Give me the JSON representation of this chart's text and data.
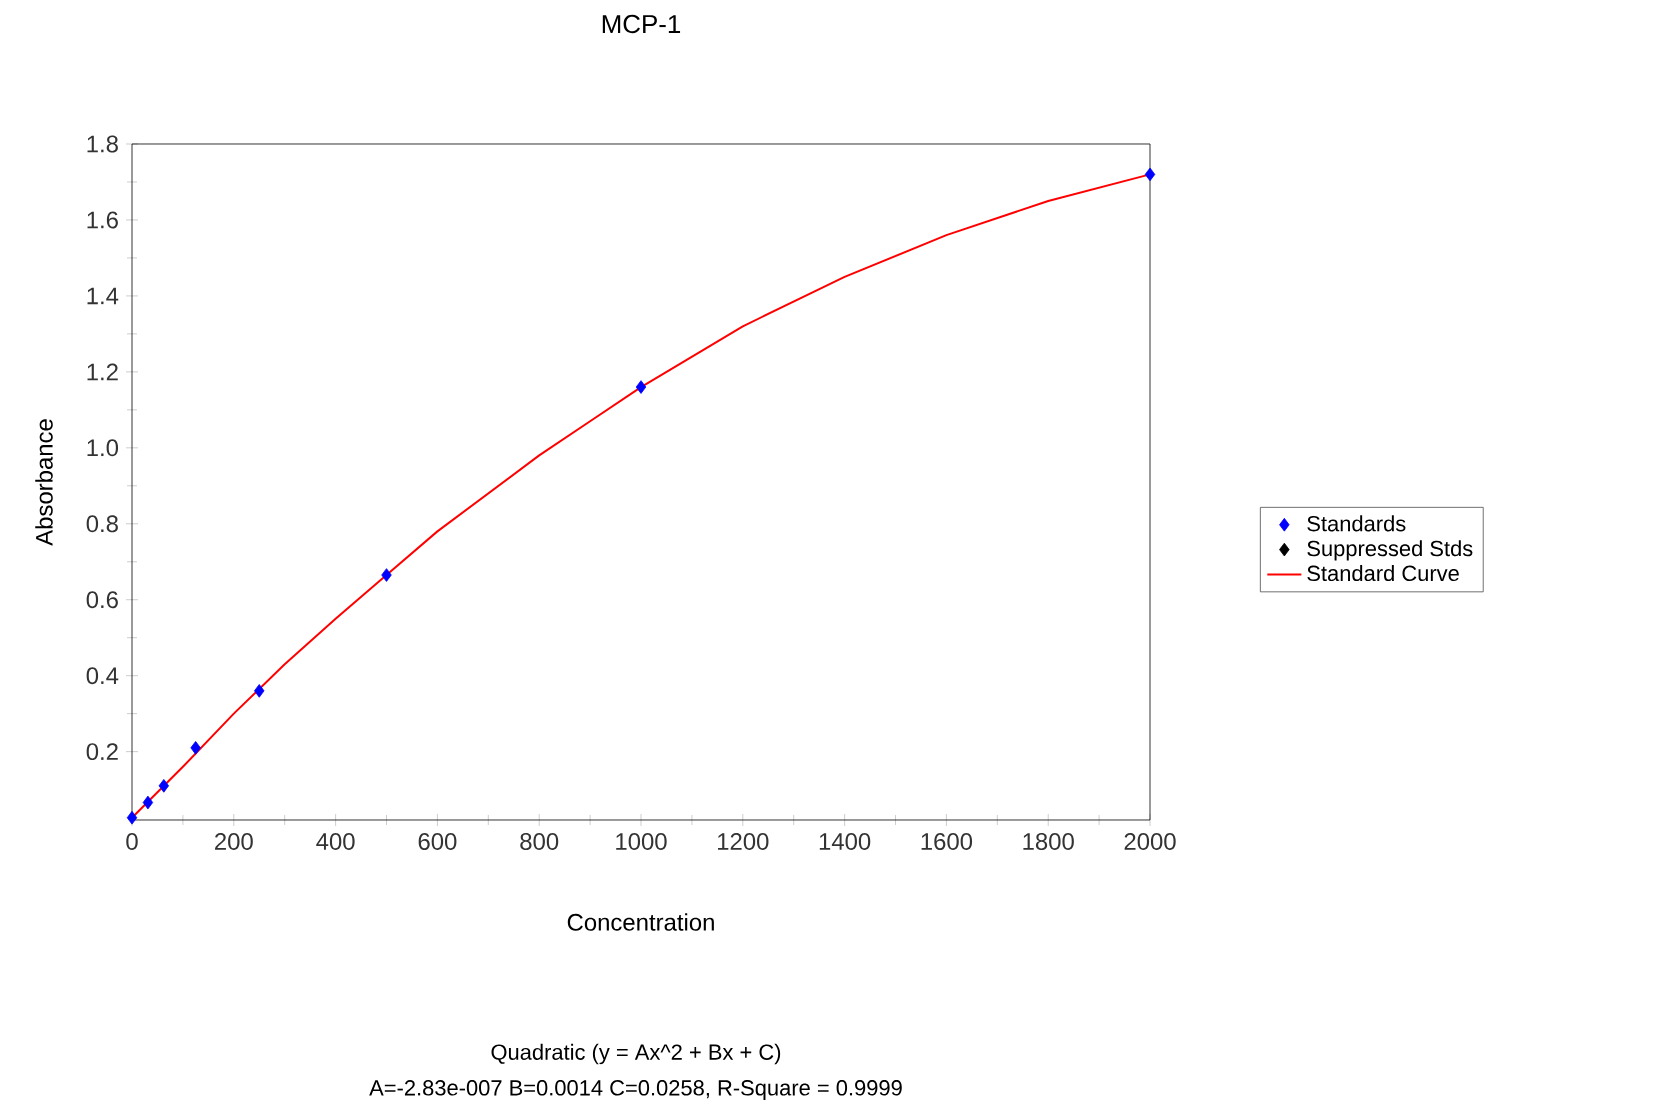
{
  "chart_data": {
    "type": "scatter",
    "title": "MCP-1",
    "xlabel": "Concentration",
    "ylabel": "Absorbance",
    "xlim": [
      0,
      2000
    ],
    "ylim": [
      0.02,
      1.8
    ],
    "xticks": [
      0,
      200,
      400,
      600,
      800,
      1000,
      1200,
      1400,
      1600,
      1800,
      2000
    ],
    "yticks": [
      0.2,
      0.4,
      0.6,
      0.8,
      {
        "value": 1,
        "label": "1.0"
      },
      1.2,
      1.4,
      1.6,
      1.8
    ],
    "grid": false,
    "legend": "right",
    "series": [
      {
        "name": "Standards",
        "marker": "diamond",
        "color": "#0000ff",
        "x": [
          0,
          31.25,
          62.5,
          125,
          250,
          500,
          1000,
          2000
        ],
        "values": [
          0.026,
          0.066,
          0.11,
          0.21,
          0.36,
          0.665,
          1.16,
          1.72
        ]
      },
      {
        "name": "Suppressed Stds",
        "marker": "diamond",
        "color": "#000000"
      },
      {
        "name": "Standard Curve",
        "type": "line",
        "marker": "none",
        "line_style": "solid",
        "color": "#ff0000",
        "x": [
          0,
          100,
          200,
          300,
          400,
          500,
          600,
          700,
          800,
          900,
          1000,
          1200,
          1400,
          1600,
          1800,
          2000
        ],
        "values": [
          0.026,
          0.16,
          0.3,
          0.43,
          0.55,
          0.665,
          0.78,
          0.88,
          0.98,
          1.07,
          1.16,
          1.32,
          1.45,
          1.56,
          1.65,
          1.72
        ]
      }
    ],
    "annotations": [
      "Quadratic (y = Ax^2 + Bx + C)",
      "A=-2.83e-007  B=0.0014  C=0.0258, R-Square = 0.9999"
    ]
  }
}
